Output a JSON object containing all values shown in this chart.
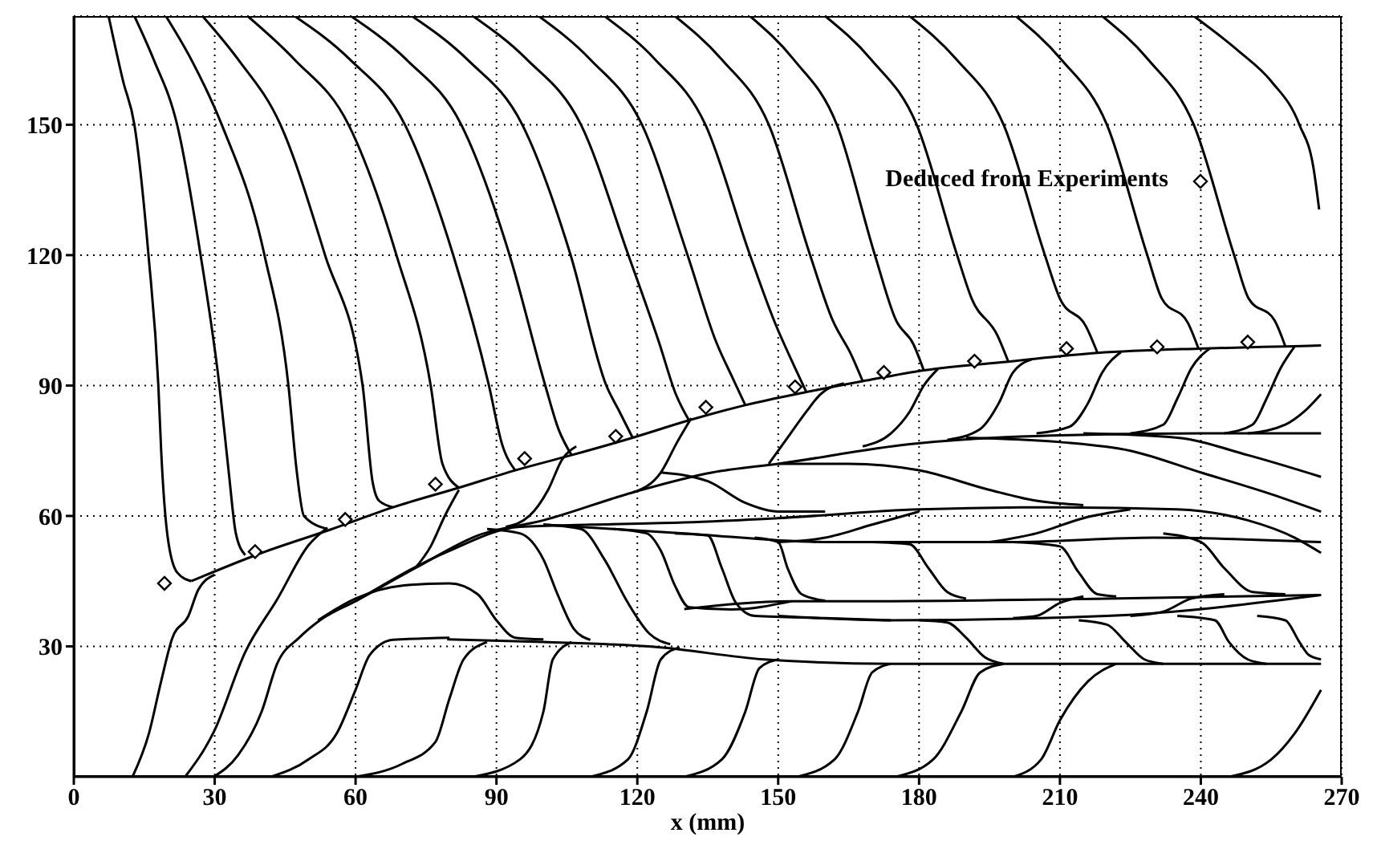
{
  "chart_data": {
    "type": "line",
    "xlabel": "x (mm)",
    "xlim": [
      0,
      270
    ],
    "xticks": [
      0,
      30,
      60,
      90,
      120,
      150,
      180,
      210,
      240,
      270
    ],
    "ylim": [
      0,
      175
    ],
    "yticks": [
      30,
      60,
      90,
      120,
      150
    ],
    "grid": true,
    "legend": "top right",
    "series": [
      {
        "type": "scatter",
        "name": "Deduced from Experiments",
        "color": "#000000",
        "marker": "diamond",
        "x": [
          19.3,
          38.6,
          57.8,
          77,
          96,
          115.4,
          134.6,
          153.6,
          172.5,
          191.8,
          211.4,
          230.7,
          250
        ],
        "values": [
          44.5,
          51.8,
          59.2,
          67.3,
          73.2,
          78.3,
          85,
          89.7,
          93,
          95.6,
          98.5,
          98.9,
          100
        ]
      },
      {
        "color": "#000000",
        "x": [
          25,
          40,
          55,
          68,
          82,
          94,
          106,
          119,
          131,
          143,
          156,
          168,
          181,
          199,
          218,
          239.5,
          258,
          265.6
        ],
        "values": [
          45,
          51.5,
          57,
          62,
          66.5,
          70.5,
          74,
          78,
          82,
          85.5,
          88.5,
          91,
          93.5,
          95.5,
          97.5,
          98.5,
          99,
          99.2
        ]
      },
      {
        "color": "#000000",
        "x": [
          7.4,
          10.5,
          12.9,
          15.9,
          18,
          18.6,
          20,
          22,
          25
        ],
        "values": [
          175,
          160,
          150,
          120,
          90,
          75,
          55,
          47,
          45
        ]
      },
      {
        "color": "#000000",
        "x": [
          12.9,
          17,
          22,
          27,
          31,
          33,
          34.5,
          36.5
        ],
        "values": [
          175,
          165,
          150,
          120,
          90,
          70,
          56,
          51
        ]
      },
      {
        "color": "#000000",
        "x": [
          19.6,
          25,
          31.5,
          40.6,
          45.7,
          47.5,
          49,
          54
        ],
        "values": [
          175,
          165,
          150,
          120,
          90,
          70,
          60,
          57
        ]
      },
      {
        "color": "#000000",
        "x": [
          27.4,
          35,
          44,
          53.5,
          61.5,
          63.6,
          65,
          68
        ],
        "values": [
          175,
          165,
          150,
          120,
          90,
          68,
          63.5,
          62
        ]
      },
      {
        "color": "#000000",
        "x": [
          37,
          47,
          58.5,
          68.7,
          76,
          78.5,
          82
        ],
        "values": [
          175,
          165,
          150,
          120,
          90,
          72,
          66.5
        ]
      },
      {
        "color": "#000000",
        "x": [
          47,
          58.8,
          70.5,
          80.8,
          88.4,
          91.2,
          94
        ],
        "values": [
          175,
          165,
          150,
          120,
          90,
          76.5,
          70.5
        ]
      },
      {
        "color": "#000000",
        "x": [
          59,
          70.8,
          82.5,
          92.8,
          100.4,
          103.2,
          106
        ],
        "values": [
          175,
          165,
          150,
          120,
          90,
          80,
          74
        ]
      },
      {
        "color": "#000000",
        "x": [
          72,
          83.8,
          95.5,
          105.8,
          113.4,
          116.2,
          119
        ],
        "values": [
          175,
          165,
          150,
          120,
          90,
          84,
          78
        ]
      },
      {
        "color": "#000000",
        "x": [
          85,
          96.5,
          108,
          118.1,
          124.6,
          128.2,
          131
        ],
        "values": [
          175,
          165,
          150,
          120,
          100,
          88,
          82
        ]
      },
      {
        "color": "#000000",
        "x": [
          99,
          110,
          121,
          130.7,
          136.8,
          140.4,
          143
        ],
        "values": [
          175,
          165,
          150,
          120,
          100,
          91.5,
          85.5
        ]
      },
      {
        "color": "#000000",
        "x": [
          113,
          123.8,
          134.5,
          144,
          149.1,
          153.4,
          156
        ],
        "values": [
          175,
          165,
          150,
          120,
          105,
          94.5,
          88.5
        ]
      },
      {
        "color": "#000000",
        "x": [
          128,
          138,
          148,
          156.8,
          161.6,
          165.6,
          168
        ],
        "values": [
          175,
          165,
          150,
          120,
          105,
          97,
          91
        ]
      },
      {
        "color": "#000000",
        "x": [
          144,
          153.3,
          162.5,
          170.6,
          175.1,
          178.8,
          181
        ],
        "values": [
          175,
          165,
          150,
          120,
          105,
          99.5,
          93.5
        ]
      },
      {
        "color": "#000000",
        "x": [
          160,
          169.8,
          179.5,
          188.1,
          191.2,
          196.7,
          199
        ],
        "values": [
          175,
          165,
          150,
          120,
          110,
          101.5,
          95.5
        ]
      },
      {
        "color": "#000000",
        "x": [
          178,
          188,
          198,
          206.8,
          210,
          215.6,
          218
        ],
        "values": [
          175,
          165,
          150,
          120,
          110,
          103.5,
          97.5
        ]
      },
      {
        "color": "#000000",
        "x": [
          200.6,
          210.3,
          220,
          228.6,
          231.7,
          237.2,
          239.5
        ],
        "values": [
          175,
          165,
          150,
          120,
          110,
          104.5,
          98.5
        ]
      },
      {
        "color": "#000000",
        "x": [
          219,
          228.8,
          238.5,
          247.1,
          250.2,
          255.7,
          258
        ],
        "values": [
          175,
          165,
          150,
          120,
          110,
          105,
          99
        ]
      },
      {
        "color": "#000000",
        "x": [
          238.5,
          248,
          255,
          261,
          264,
          265.2
        ],
        "values": [
          175,
          167,
          160,
          150,
          140,
          130.5
        ]
      },
      {
        "color": "#000000",
        "x": [
          12.5,
          16,
          18.6,
          21,
          24.4,
          26.5,
          30
        ],
        "values": [
          0,
          10,
          22,
          32,
          37,
          43,
          46.5
        ]
      },
      {
        "color": "#000000",
        "x": [
          23.7,
          29.8,
          36.5,
          43.3,
          50,
          54
        ],
        "values": [
          0,
          10.3,
          28.7,
          40.8,
          53.3,
          57.3
        ]
      },
      {
        "color": "#000000",
        "x": [
          29.8,
          35,
          40,
          43.3,
          48,
          52.4,
          60,
          72.7,
          86,
          100,
          119,
          136,
          150,
          178,
          208,
          240,
          265.6
        ],
        "values": [
          0,
          5,
          15,
          26,
          32,
          36,
          40.4,
          48,
          55.5,
          59,
          65.4,
          70,
          72,
          76.5,
          78.5,
          79,
          79
        ]
      },
      {
        "color": "#000000",
        "x": [
          60,
          80,
          95,
          110,
          130,
          150,
          180,
          210,
          235,
          250,
          260,
          265.6
        ],
        "values": [
          40.4,
          52,
          57.5,
          58,
          58.5,
          59.5,
          61.5,
          62,
          61.5,
          59,
          55,
          51.5
        ]
      },
      {
        "color": "#000000",
        "x": [
          100,
          130,
          160,
          200,
          230,
          265.6
        ],
        "values": [
          58,
          56,
          54,
          54,
          55,
          54
        ]
      },
      {
        "color": "#000000",
        "x": [
          130,
          153,
          174,
          220,
          265.6
        ],
        "values": [
          38.6,
          40.4,
          40.4,
          41,
          41.8
        ]
      },
      {
        "color": "#000000",
        "x": [
          150,
          174,
          220,
          265.6
        ],
        "values": [
          37,
          36,
          37,
          41.8
        ]
      },
      {
        "color": "#000000",
        "x": [
          79.5,
          100,
          124.5,
          147,
          174,
          220,
          265.6
        ],
        "values": [
          31.6,
          31,
          29.8,
          27,
          26,
          26,
          26
        ]
      },
      {
        "color": "#000000",
        "x": [
          52,
          60,
          70,
          80,
          86,
          90,
          94,
          100
        ],
        "values": [
          36,
          41,
          44,
          44.5,
          42,
          36,
          32,
          31.6
        ]
      },
      {
        "color": "#000000",
        "x": [
          88,
          95,
          100,
          103,
          106.5,
          110
        ],
        "values": [
          57,
          56,
          50,
          42,
          34,
          31.5
        ]
      },
      {
        "color": "#000000",
        "x": [
          100,
          108,
          113,
          118,
          122.5,
          127
        ],
        "values": [
          58,
          57,
          50,
          40,
          33,
          30.5
        ]
      },
      {
        "color": "#000000",
        "x": [
          115,
          122,
          125,
          128,
          131,
          140,
          153
        ],
        "values": [
          57,
          56,
          52,
          44,
          39,
          38.5,
          40.4
        ]
      },
      {
        "color": "#000000",
        "x": [
          128,
          135,
          138,
          141,
          145,
          160,
          174
        ],
        "values": [
          56,
          55.5,
          48,
          40,
          37,
          36.5,
          36
        ]
      },
      {
        "color": "#000000",
        "x": [
          145,
          150,
          152,
          155,
          160
        ],
        "values": [
          55,
          54,
          48,
          42,
          40.5
        ]
      },
      {
        "color": "#000000",
        "x": [
          170,
          178,
          182,
          186,
          190
        ],
        "values": [
          54,
          53.5,
          48,
          42.5,
          41
        ]
      },
      {
        "color": "#000000",
        "x": [
          200,
          210,
          214,
          218,
          222
        ],
        "values": [
          54,
          53,
          47,
          42,
          41.5
        ]
      },
      {
        "color": "#000000",
        "x": [
          232,
          240,
          245,
          251,
          258
        ],
        "values": [
          56,
          54,
          48,
          42.5,
          42
        ]
      },
      {
        "color": "#000000",
        "x": [
          180,
          186,
          190,
          194,
          198
        ],
        "values": [
          36,
          35.5,
          32,
          27.5,
          26
        ]
      },
      {
        "color": "#000000",
        "x": [
          214,
          220,
          224,
          228,
          232
        ],
        "values": [
          36,
          35,
          31,
          27,
          26
        ]
      },
      {
        "color": "#000000",
        "x": [
          235,
          243,
          246,
          250,
          254
        ],
        "values": [
          37,
          36,
          31,
          27,
          26
        ]
      },
      {
        "color": "#000000",
        "x": [
          252,
          258,
          261,
          263,
          265.6
        ],
        "values": [
          37,
          36,
          31,
          28,
          27
        ]
      },
      {
        "color": "#000000",
        "x": [
          42,
          50,
          56,
          60,
          63,
          68,
          80
        ],
        "values": [
          0,
          4,
          10,
          20,
          28,
          31.5,
          32
        ]
      },
      {
        "color": "#000000",
        "x": [
          60,
          70,
          77,
          80,
          83,
          88
        ],
        "values": [
          0,
          3,
          8,
          18,
          27,
          31
        ]
      },
      {
        "color": "#000000",
        "x": [
          85,
          95,
          100,
          102,
          106
        ],
        "values": [
          0,
          4,
          15,
          27,
          31
        ]
      },
      {
        "color": "#000000",
        "x": [
          110,
          118,
          122,
          125,
          129
        ],
        "values": [
          0,
          4,
          15,
          27,
          29.8
        ]
      },
      {
        "color": "#000000",
        "x": [
          130,
          138,
          143,
          146,
          150
        ],
        "values": [
          0,
          4,
          15,
          25,
          27
        ]
      },
      {
        "color": "#000000",
        "x": [
          154,
          162,
          167,
          170,
          174
        ],
        "values": [
          0,
          4,
          15,
          24,
          26
        ]
      },
      {
        "color": "#000000",
        "x": [
          175,
          183,
          189,
          193,
          198
        ],
        "values": [
          0,
          4,
          15,
          24,
          26
        ]
      },
      {
        "color": "#000000",
        "x": [
          200,
          206,
          210,
          216,
          222
        ],
        "values": [
          0,
          4,
          13,
          22,
          26
        ]
      },
      {
        "color": "#000000",
        "x": [
          246,
          255,
          260,
          265.6
        ],
        "values": [
          0,
          4,
          10,
          20
        ]
      },
      {
        "color": "#000000",
        "x": [
          150,
          165,
          180,
          195,
          205,
          215
        ],
        "values": [
          72,
          72,
          70.5,
          66,
          63.5,
          62.5
        ]
      },
      {
        "color": "#000000",
        "x": [
          190,
          210,
          225,
          240,
          255,
          265.6
        ],
        "values": [
          78,
          77,
          75,
          70,
          65,
          61
        ]
      },
      {
        "color": "#000000",
        "x": [
          215,
          235,
          250,
          265.6
        ],
        "values": [
          79,
          78,
          74,
          69
        ]
      },
      {
        "color": "#000000",
        "x": [
          125,
          135,
          143,
          150,
          160
        ],
        "values": [
          70,
          68,
          63,
          61,
          61
        ]
      },
      {
        "color": "#000000",
        "x": [
          150,
          160,
          170,
          180
        ],
        "values": [
          54,
          55,
          58,
          61
        ]
      },
      {
        "color": "#000000",
        "x": [
          195,
          205,
          215,
          225
        ],
        "values": [
          54,
          56,
          59.5,
          61.5
        ]
      },
      {
        "color": "#000000",
        "x": [
          200,
          205,
          210,
          215
        ],
        "values": [
          36.5,
          37,
          40,
          41.5
        ]
      },
      {
        "color": "#000000",
        "x": [
          225,
          232,
          238,
          245
        ],
        "values": [
          37,
          38,
          41,
          42
        ]
      },
      {
        "color": "#000000",
        "x": [
          148,
          152,
          156,
          159,
          164
        ],
        "values": [
          72,
          78,
          84,
          88,
          90.5
        ]
      },
      {
        "color": "#000000",
        "x": [
          168,
          174,
          178,
          181,
          184
        ],
        "values": [
          76,
          79,
          84,
          90,
          93.8
        ]
      },
      {
        "color": "#000000",
        "x": [
          186,
          193,
          197,
          200,
          204
        ],
        "values": [
          77.5,
          80,
          86,
          93,
          96
        ]
      },
      {
        "color": "#000000",
        "x": [
          205,
          212,
          216,
          219,
          223
        ],
        "values": [
          79,
          80.5,
          86,
          93,
          97.7
        ]
      },
      {
        "color": "#000000",
        "x": [
          225,
          232,
          235,
          238,
          242
        ],
        "values": [
          79,
          81,
          87,
          94,
          98.6
        ]
      },
      {
        "color": "#000000",
        "x": [
          245,
          251,
          254,
          257,
          260
        ],
        "values": [
          79,
          81,
          87,
          94,
          99
        ]
      },
      {
        "color": "#000000",
        "x": [
          250,
          258,
          262,
          265.6
        ],
        "values": [
          79,
          81,
          84,
          88
        ]
      },
      {
        "color": "#000000",
        "x": [
          119,
          125,
          128.5,
          131.5
        ],
        "values": [
          65.4,
          70,
          77,
          82.5
        ]
      },
      {
        "color": "#000000",
        "x": [
          92,
          97,
          101,
          104,
          107
        ],
        "values": [
          57.5,
          60,
          66,
          73,
          76
        ]
      },
      {
        "color": "#000000",
        "x": [
          72.7,
          76,
          79,
          82
        ],
        "values": [
          48,
          53,
          60,
          66
        ]
      }
    ]
  }
}
